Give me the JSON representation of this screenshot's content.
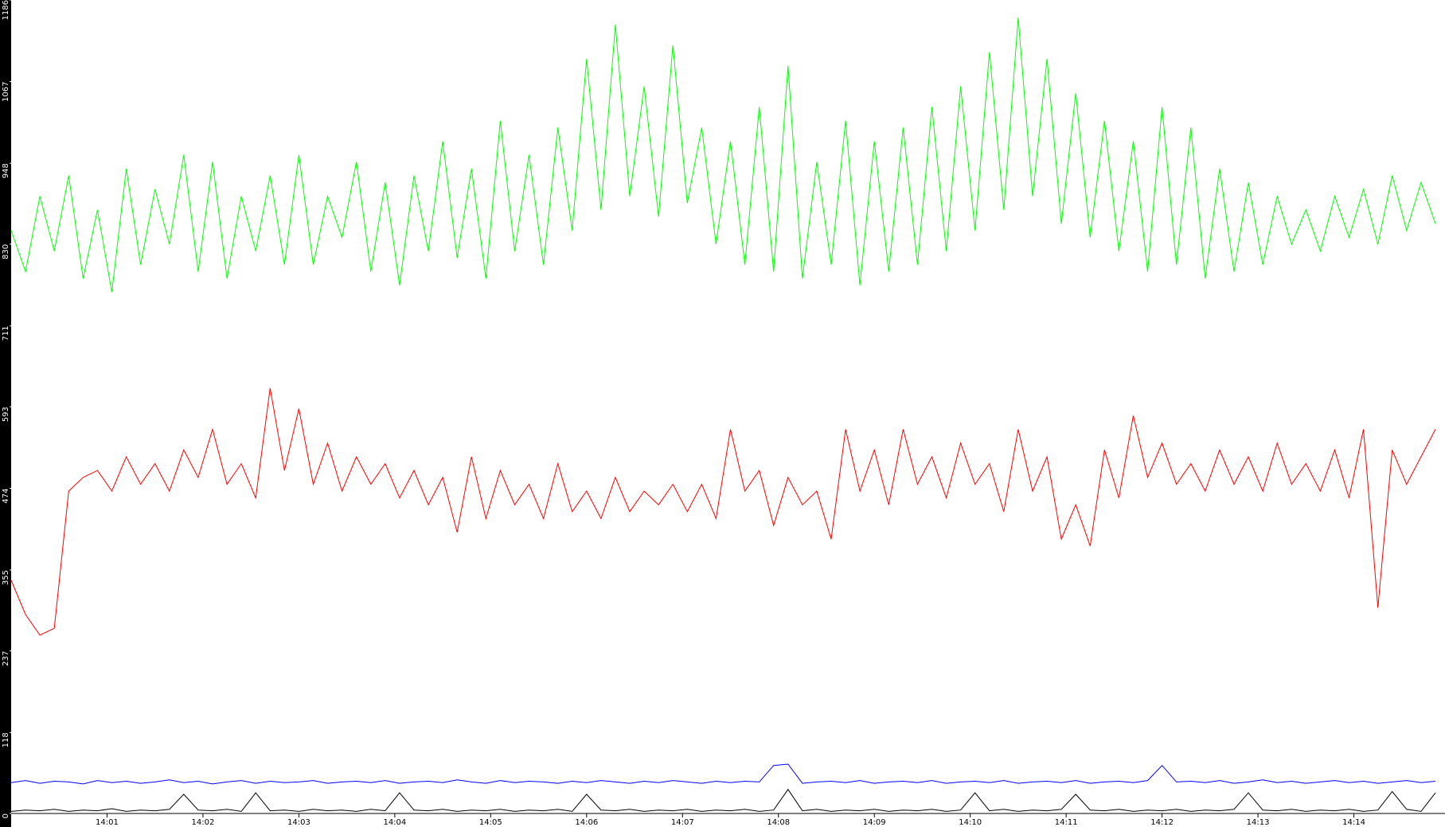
{
  "chart_data": {
    "type": "line",
    "x": [
      0,
      0.15,
      0.3,
      0.45,
      0.6,
      0.75,
      0.9,
      1.05,
      1.2,
      1.35,
      1.5,
      1.65,
      1.8,
      1.95,
      2.1,
      2.25,
      2.4,
      2.55,
      2.7,
      2.85,
      3,
      3.15,
      3.3,
      3.45,
      3.6,
      3.75,
      3.9,
      4.05,
      4.2,
      4.35,
      4.5,
      4.65,
      4.8,
      4.95,
      5.1,
      5.25,
      5.4,
      5.55,
      5.7,
      5.85,
      6,
      6.15,
      6.3,
      6.45,
      6.6,
      6.75,
      6.9,
      7.05,
      7.2,
      7.35,
      7.5,
      7.65,
      7.8,
      7.95,
      8.1,
      8.25,
      8.4,
      8.55,
      8.7,
      8.85,
      9,
      9.15,
      9.3,
      9.45,
      9.6,
      9.75,
      9.9,
      10.05,
      10.2,
      10.35,
      10.5,
      10.65,
      10.8,
      10.95,
      11.1,
      11.25,
      11.4,
      11.55,
      11.7,
      11.85,
      12,
      12.15,
      12.3,
      12.45,
      12.6,
      12.75,
      12.9,
      13.05,
      13.2,
      13.35,
      13.5,
      13.65,
      13.8,
      13.95,
      14.1,
      14.25,
      14.4,
      14.55,
      14.7,
      14.85
    ],
    "series": [
      {
        "color": "#00ff00",
        "values": [
          850,
          790,
          900,
          820,
          930,
          780,
          880,
          760,
          940,
          800,
          910,
          830,
          960,
          790,
          950,
          780,
          900,
          820,
          930,
          800,
          960,
          800,
          900,
          840,
          950,
          790,
          920,
          770,
          930,
          820,
          980,
          810,
          940,
          780,
          1010,
          820,
          960,
          800,
          1000,
          850,
          1100,
          880,
          1150,
          900,
          1060,
          870,
          1120,
          890,
          1000,
          830,
          980,
          800,
          1030,
          790,
          1090,
          780,
          950,
          800,
          1010,
          770,
          980,
          790,
          1000,
          800,
          1030,
          820,
          1060,
          850,
          1110,
          880,
          1160,
          900,
          1100,
          860,
          1050,
          840,
          1010,
          820,
          980,
          790,
          1030,
          800,
          1000,
          780,
          940,
          790,
          920,
          800,
          900,
          830,
          880,
          820,
          900,
          840,
          910,
          830,
          930,
          850,
          920,
          860
        ]
      },
      {
        "color": "#ff0000",
        "values": [
          340,
          290,
          260,
          270,
          470,
          490,
          500,
          470,
          520,
          480,
          510,
          470,
          530,
          490,
          560,
          480,
          510,
          460,
          620,
          500,
          590,
          480,
          540,
          470,
          520,
          480,
          510,
          460,
          500,
          450,
          490,
          410,
          520,
          430,
          500,
          450,
          480,
          430,
          510,
          440,
          470,
          430,
          490,
          440,
          470,
          450,
          480,
          440,
          480,
          430,
          560,
          470,
          500,
          420,
          490,
          450,
          470,
          400,
          560,
          470,
          530,
          450,
          560,
          480,
          520,
          460,
          540,
          480,
          510,
          440,
          560,
          470,
          520,
          400,
          450,
          390,
          530,
          460,
          580,
          490,
          540,
          480,
          510,
          470,
          530,
          480,
          520,
          470,
          540,
          480,
          510,
          470,
          530,
          460,
          560,
          300,
          530,
          480,
          520,
          560
        ]
      },
      {
        "color": "#0000ff",
        "values": [
          45,
          48,
          44,
          47,
          46,
          43,
          48,
          45,
          47,
          44,
          46,
          49,
          45,
          47,
          43,
          46,
          48,
          44,
          47,
          45,
          46,
          48,
          44,
          46,
          47,
          45,
          48,
          44,
          46,
          47,
          45,
          49,
          46,
          44,
          48,
          45,
          47,
          46,
          44,
          47,
          45,
          48,
          46,
          44,
          47,
          45,
          48,
          46,
          44,
          47,
          45,
          47,
          46,
          70,
          72,
          44,
          46,
          47,
          45,
          48,
          44,
          46,
          47,
          45,
          48,
          44,
          46,
          47,
          45,
          48,
          44,
          46,
          47,
          45,
          48,
          44,
          46,
          47,
          45,
          48,
          70,
          46,
          47,
          45,
          48,
          44,
          46,
          49,
          45,
          47,
          44,
          46,
          48,
          45,
          47,
          44,
          46,
          48,
          45,
          47
        ]
      },
      {
        "color": "#000000",
        "values": [
          3,
          5,
          4,
          6,
          3,
          5,
          4,
          7,
          3,
          5,
          4,
          6,
          28,
          5,
          4,
          6,
          3,
          30,
          4,
          5,
          3,
          6,
          4,
          5,
          3,
          6,
          4,
          30,
          5,
          4,
          6,
          3,
          5,
          4,
          6,
          3,
          5,
          4,
          6,
          3,
          28,
          5,
          4,
          6,
          3,
          5,
          4,
          6,
          3,
          5,
          4,
          6,
          3,
          5,
          35,
          4,
          6,
          3,
          5,
          4,
          6,
          3,
          5,
          4,
          6,
          3,
          5,
          30,
          4,
          6,
          3,
          5,
          4,
          6,
          28,
          5,
          4,
          6,
          3,
          5,
          4,
          6,
          3,
          5,
          4,
          6,
          30,
          5,
          4,
          6,
          3,
          5,
          4,
          6,
          3,
          5,
          32,
          6,
          3,
          30
        ]
      }
    ],
    "xlim": [
      0,
      14.95
    ],
    "xticks": [
      {
        "value": 1,
        "label": "14:01"
      },
      {
        "value": 2,
        "label": "14:02"
      },
      {
        "value": 3,
        "label": "14:03"
      },
      {
        "value": 4,
        "label": "14:04"
      },
      {
        "value": 5,
        "label": "14:05"
      },
      {
        "value": 6,
        "label": "14:06"
      },
      {
        "value": 7,
        "label": "14:07"
      },
      {
        "value": 8,
        "label": "14:08"
      },
      {
        "value": 9,
        "label": "14:09"
      },
      {
        "value": 10,
        "label": "14:10"
      },
      {
        "value": 11,
        "label": "14:11"
      },
      {
        "value": 12,
        "label": "14:12"
      },
      {
        "value": 13,
        "label": "14:13"
      },
      {
        "value": 14,
        "label": "14:14"
      }
    ],
    "ylim": [
      0,
      1186
    ],
    "yticks": [
      0,
      118,
      237,
      355,
      474,
      593,
      711,
      830,
      948,
      1067,
      1186
    ]
  }
}
